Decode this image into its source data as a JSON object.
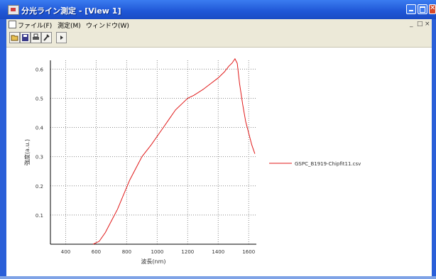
{
  "window": {
    "title": "分光ライン測定 - [View 1]"
  },
  "menu": {
    "items": [
      "ファイル(F)",
      "測定(M)",
      "ウィンドウ(W)"
    ],
    "mdi_controls": [
      "_",
      "□",
      "×"
    ]
  },
  "toolbar": {
    "icons": [
      "open-icon",
      "save-icon",
      "print-icon",
      "settings-icon",
      "arrow-icon"
    ]
  },
  "chart_data": {
    "type": "line",
    "xlabel": "波長(nm)",
    "ylabel": "強度(a.u.)",
    "xlim": [
      300,
      1650
    ],
    "ylim": [
      0,
      0.63
    ],
    "x_ticks": [
      400,
      600,
      800,
      1000,
      1200,
      1400,
      1600
    ],
    "x_tick_labels": [
      "400",
      "600",
      "800",
      "1000",
      "1200",
      "1400",
      "1600"
    ],
    "y_ticks": [
      0.1,
      0.2,
      0.3,
      0.4,
      0.5,
      0.6
    ],
    "y_tick_labels": [
      "0.1",
      "0.2",
      "0.3",
      "0.4",
      "0.5",
      "0.6"
    ],
    "grid": true,
    "legend_position": "right",
    "colors": {
      "series": "#e01818",
      "grid": "#8c8c8c",
      "axis": "#000000"
    },
    "series": [
      {
        "name": "GSPC_B1919-Chipfit11.csv",
        "x": [
          580,
          620,
          660,
          700,
          740,
          780,
          820,
          860,
          900,
          960,
          1000,
          1040,
          1080,
          1120,
          1160,
          1200,
          1240,
          1300,
          1350,
          1400,
          1440,
          1470,
          1490,
          1510,
          1525,
          1540,
          1560,
          1580,
          1600,
          1620,
          1640
        ],
        "values": [
          0.0,
          0.01,
          0.04,
          0.08,
          0.12,
          0.17,
          0.22,
          0.26,
          0.3,
          0.34,
          0.37,
          0.4,
          0.43,
          0.46,
          0.48,
          0.5,
          0.51,
          0.53,
          0.55,
          0.57,
          0.59,
          0.61,
          0.62,
          0.635,
          0.62,
          0.55,
          0.48,
          0.42,
          0.38,
          0.34,
          0.31
        ]
      }
    ]
  }
}
